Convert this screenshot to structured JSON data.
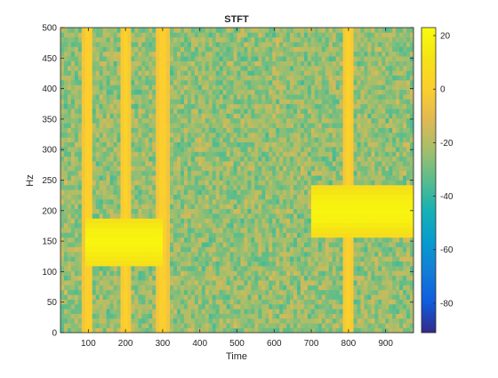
{
  "chart_data": {
    "type": "heatmap",
    "title": "STFT",
    "xlabel": "Time",
    "ylabel": "Hz",
    "xlim": [
      25,
      975
    ],
    "ylim": [
      0,
      500
    ],
    "x_ticks": [
      100,
      200,
      300,
      400,
      500,
      600,
      700,
      800,
      900
    ],
    "y_ticks": [
      0,
      50,
      100,
      150,
      200,
      250,
      300,
      350,
      400,
      450,
      500
    ],
    "colorbar": {
      "limits": [
        -91,
        23
      ],
      "ticks": [
        20,
        0,
        -20,
        -40,
        -60,
        -80
      ],
      "colormap": "parula"
    },
    "background_level_db": -25,
    "features": [
      {
        "kind": "tone",
        "t_start": 100,
        "t_end": 300,
        "freq": 150,
        "level_db": 20
      },
      {
        "kind": "tone",
        "t_start": 700,
        "t_end": 975,
        "freq": 200,
        "level_db": 20
      },
      {
        "kind": "click",
        "time": 100,
        "level_db": 3
      },
      {
        "kind": "click",
        "time": 200,
        "level_db": 3
      },
      {
        "kind": "click",
        "time": 300,
        "level_db": 3
      },
      {
        "kind": "click",
        "time": 800,
        "level_db": 3
      }
    ]
  }
}
